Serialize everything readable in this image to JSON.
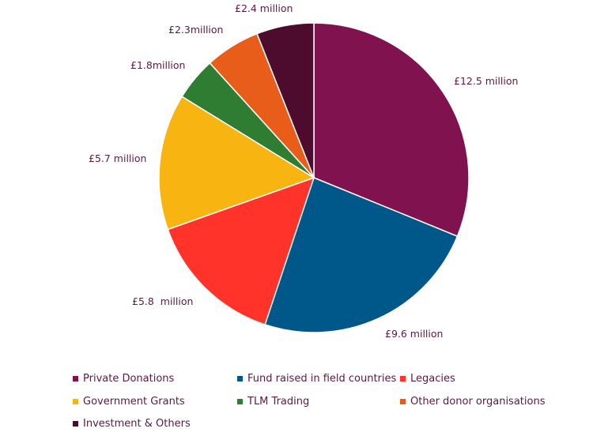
{
  "chart_data": {
    "type": "pie",
    "title": "",
    "categories": [
      "Private Donations",
      "Fund raised in field countries",
      "Legacies",
      "Government Grants",
      "TLM Trading",
      "Other donor organisations",
      "Investment & Others"
    ],
    "values": [
      12.5,
      9.6,
      5.8,
      5.7,
      1.8,
      2.3,
      2.4
    ],
    "data_labels": [
      "£12.5 million",
      "£9.6 million",
      "£5.8  million",
      "£5.7 million",
      "£1.8million",
      "£2.3million",
      "£2.4 million"
    ],
    "colors": [
      "#80134f",
      "#00578a",
      "#ff3329",
      "#f8b411",
      "#2e7d32",
      "#e85d1a",
      "#4d0c2e"
    ],
    "unit": "£ million",
    "legend_position": "bottom",
    "start_angle": "12 o'clock",
    "direction": "clockwise"
  }
}
